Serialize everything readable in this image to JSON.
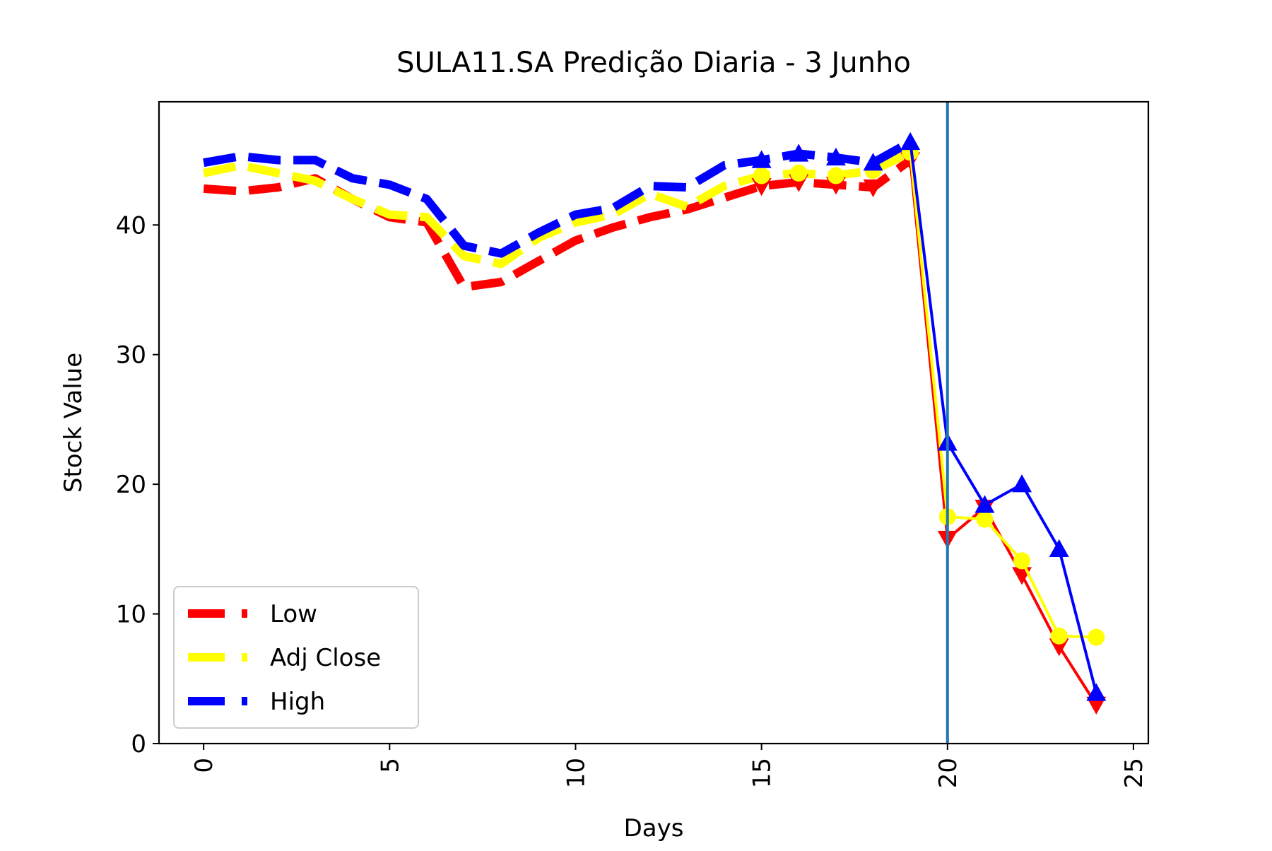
{
  "chart_data": {
    "type": "line",
    "title": "SULA11.SA Predição Diaria - 3 Junho",
    "xlabel": "Days",
    "ylabel": "Stock Value",
    "xlim": [
      -1.2,
      25.4
    ],
    "ylim": [
      0,
      49.5
    ],
    "xticks": [
      0,
      5,
      10,
      15,
      20,
      25
    ],
    "yticks": [
      0,
      10,
      20,
      30,
      40
    ],
    "xtick_labels": [
      "0",
      "5",
      "10",
      "15",
      "20",
      "25"
    ],
    "ytick_labels": [
      "0",
      "10",
      "20",
      "30",
      "40"
    ],
    "grid": false,
    "legend_position": "lower-left",
    "vline_x": 20,
    "vline_color": "#1f77b4",
    "series": [
      {
        "name": "Low",
        "color": "#ff0000",
        "marker": "triangle-down",
        "history_x": [
          0,
          1,
          2,
          3,
          4,
          5,
          6,
          7,
          8,
          9,
          10,
          11,
          12,
          13,
          14,
          15,
          16,
          17,
          18,
          19
        ],
        "history_y": [
          42.8,
          42.6,
          42.9,
          43.6,
          42.0,
          40.6,
          40.2,
          35.2,
          35.6,
          37.2,
          38.8,
          39.8,
          40.6,
          41.2,
          42.1,
          43.0,
          43.3,
          43.1,
          42.9,
          45.0
        ],
        "marked_x": [
          15,
          16,
          17,
          18,
          19
        ],
        "marked_y": [
          43.0,
          43.3,
          43.1,
          42.9,
          45.0
        ],
        "forecast_x": [
          19,
          20,
          21,
          22,
          23,
          24
        ],
        "forecast_y": [
          45.0,
          15.8,
          18.2,
          13.0,
          7.5,
          3.0
        ]
      },
      {
        "name": "Adj Close",
        "color": "#ffff00",
        "marker": "circle",
        "history_x": [
          0,
          1,
          2,
          3,
          4,
          5,
          6,
          7,
          8,
          9,
          10,
          11,
          12,
          13,
          14,
          15,
          16,
          17,
          18,
          19
        ],
        "history_y": [
          44.0,
          44.6,
          44.0,
          43.4,
          42.0,
          40.8,
          40.6,
          37.6,
          37.0,
          39.0,
          40.2,
          40.8,
          42.4,
          41.4,
          43.0,
          43.8,
          44.0,
          43.8,
          44.2,
          45.6
        ],
        "marked_x": [
          15,
          16,
          17,
          18,
          19
        ],
        "marked_y": [
          43.8,
          44.0,
          43.8,
          44.2,
          45.6
        ],
        "forecast_x": [
          19,
          20,
          21,
          22,
          23,
          24
        ],
        "forecast_y": [
          45.6,
          17.5,
          17.3,
          14.1,
          8.3,
          8.2
        ]
      },
      {
        "name": "High",
        "color": "#0000ff",
        "marker": "triangle-up",
        "history_x": [
          0,
          1,
          2,
          3,
          4,
          5,
          6,
          7,
          8,
          9,
          10,
          11,
          12,
          13,
          14,
          15,
          16,
          17,
          18,
          19
        ],
        "history_y": [
          44.8,
          45.3,
          45.0,
          45.0,
          43.6,
          43.1,
          42.0,
          38.4,
          37.8,
          39.4,
          40.8,
          41.3,
          43.0,
          42.9,
          44.6,
          45.0,
          45.5,
          45.2,
          44.8,
          46.4
        ],
        "marked_x": [
          15,
          16,
          17,
          18,
          19
        ],
        "marked_y": [
          45.0,
          45.5,
          45.2,
          44.8,
          46.4
        ],
        "forecast_x": [
          19,
          20,
          21,
          22,
          23,
          24
        ],
        "forecast_y": [
          46.4,
          23.2,
          18.4,
          20.0,
          15.0,
          3.9
        ]
      }
    ]
  }
}
